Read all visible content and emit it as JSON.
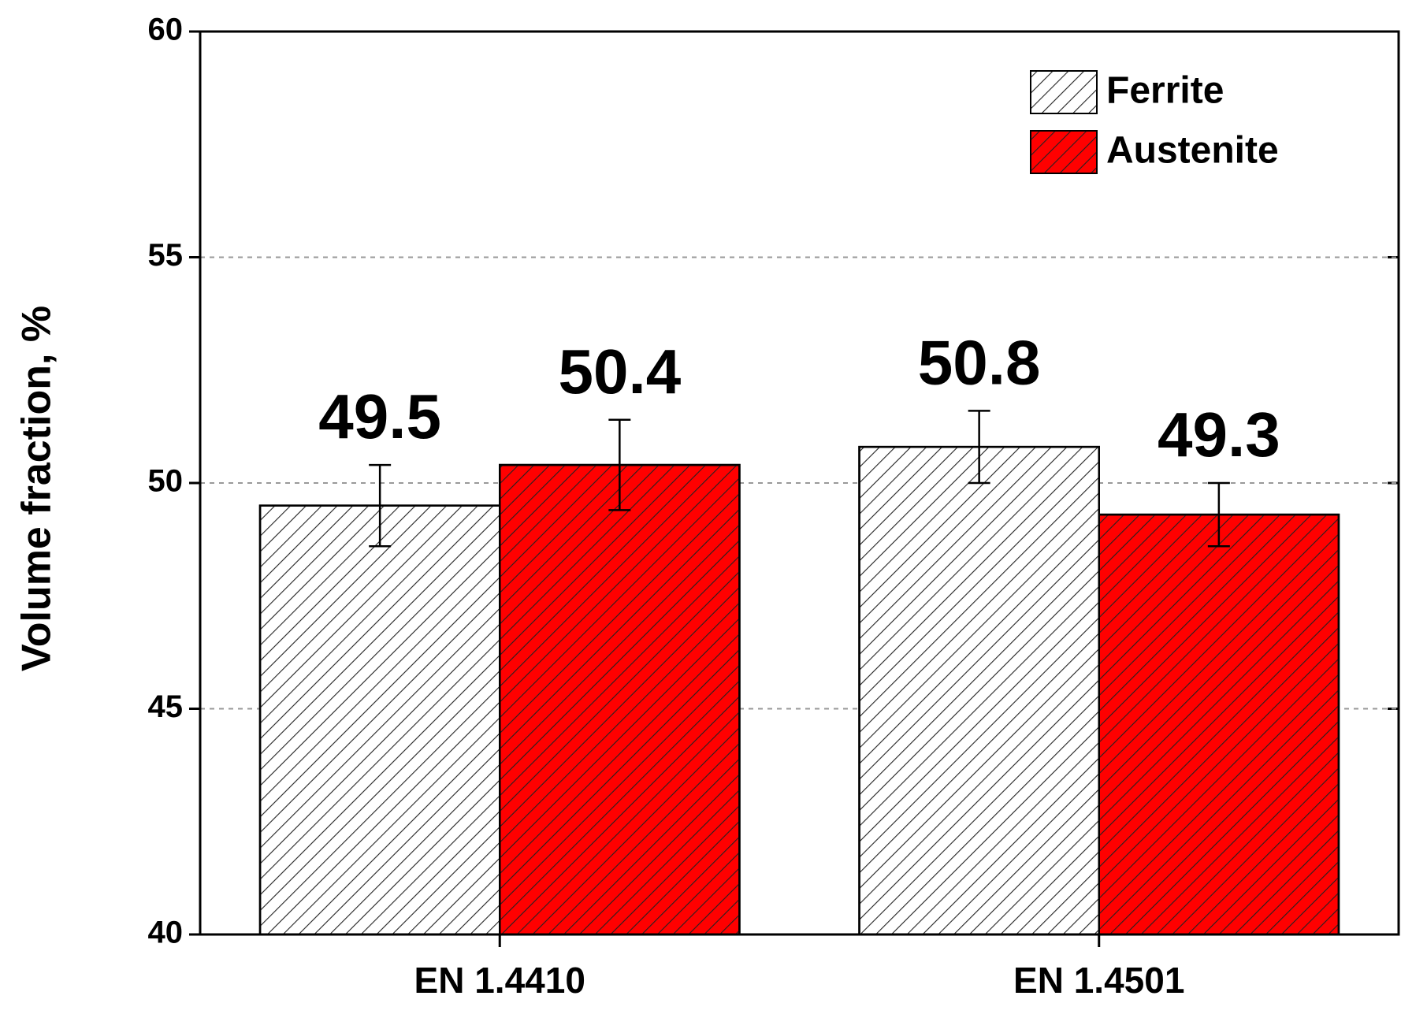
{
  "chart_data": {
    "type": "bar",
    "ylabel": "Volume fraction, %",
    "categories": [
      "EN 1.4410",
      "EN 1.4501"
    ],
    "series": [
      {
        "name": "Ferrite",
        "color": "#ffffff",
        "values": [
          49.5,
          50.8
        ],
        "errors": [
          0.9,
          0.8
        ]
      },
      {
        "name": "Austenite",
        "color": "#ff0000",
        "values": [
          50.4,
          49.3
        ],
        "errors": [
          1.0,
          0.7
        ]
      }
    ],
    "ylim": [
      40,
      60
    ],
    "yticks": [
      40,
      45,
      50,
      55,
      60
    ],
    "grid": true,
    "legend": "upper right",
    "hatch": true
  }
}
